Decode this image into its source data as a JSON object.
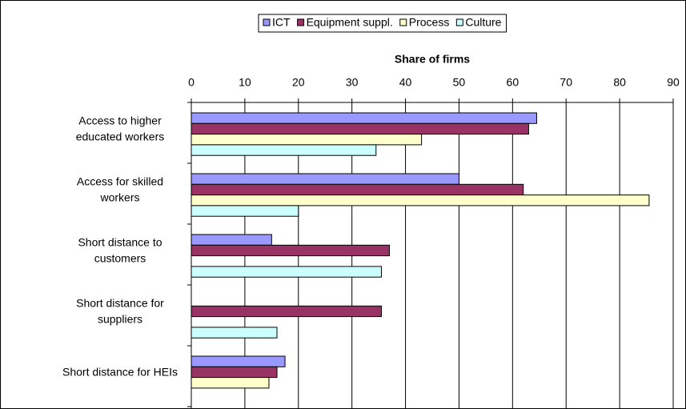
{
  "chart_data": {
    "type": "hbar",
    "x_label": "Share of firms",
    "categories": [
      [
        "Access to higher",
        "educated workers"
      ],
      [
        "Access for skilled",
        "workers"
      ],
      [
        "Short distance to",
        "customers"
      ],
      [
        "Short distance for",
        "suppliers"
      ],
      [
        "Short distance for HEIs"
      ]
    ],
    "series": [
      {
        "name": "ICT",
        "color": "#9999ff",
        "values": [
          64.5,
          50,
          15,
          null,
          17.5
        ]
      },
      {
        "name": "Equipment suppl.",
        "color": "#993366",
        "values": [
          63,
          62,
          37,
          35.5,
          16
        ]
      },
      {
        "name": "Process",
        "color": "#ffffcc",
        "values": [
          43,
          85.5,
          null,
          null,
          14.5
        ]
      },
      {
        "name": "Culture",
        "color": "#ccffff",
        "values": [
          34.5,
          20,
          35.5,
          16,
          null
        ]
      }
    ],
    "xlim": [
      0,
      90
    ],
    "xticks": [
      0,
      10,
      20,
      30,
      40,
      50,
      60,
      70,
      80,
      90
    ],
    "grid": true,
    "legend": "top"
  }
}
